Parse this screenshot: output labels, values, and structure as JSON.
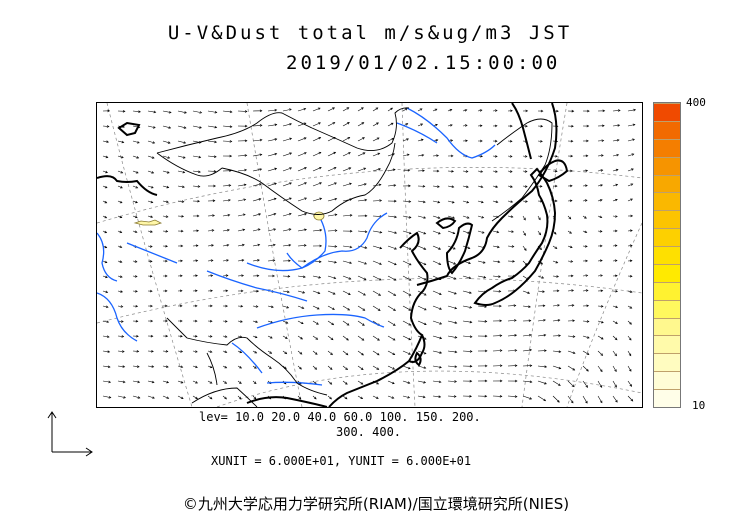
{
  "title": {
    "line1": "U-V&Dust total m/s&ug/m3 JST",
    "line2": "2019/01/02.15:00:00"
  },
  "colorbar": {
    "max_label": "400",
    "min_label": "10",
    "colors": [
      "#f04a00",
      "#f26a00",
      "#f47e00",
      "#f69400",
      "#f8a800",
      "#fab800",
      "#fcc400",
      "#fdd000",
      "#fee000",
      "#ffea00",
      "#fff230",
      "#fff85e",
      "#fff88e",
      "#fffaaa",
      "#fffcc0",
      "#fffdd6",
      "#fffee8"
    ]
  },
  "levels": {
    "line1": "lev= 10.0 20.0 40.0 60.0 100. 150. 200.",
    "line2": "300. 400."
  },
  "units": {
    "text": "XUNIT = 6.000E+01, YUNIT = 6.000E+01"
  },
  "copyright": "©九州大学応用力学研究所(RIAM)/国立環境研究所(NIES)",
  "map": {
    "coast_color": "#000000",
    "border_color": "#000000",
    "river_color": "#1a64ff",
    "arrow_color": "#000000",
    "grid_color": "#888888",
    "dust_patch_color": "#fff7a8"
  }
}
